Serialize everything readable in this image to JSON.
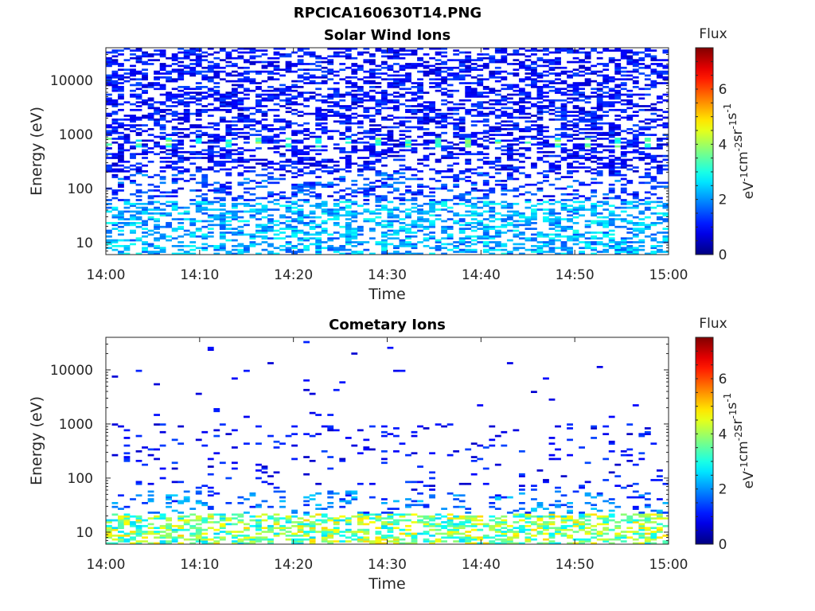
{
  "figure": {
    "title": "RPCICA160630T14.PNG"
  },
  "chart_data": [
    {
      "type": "heatmap",
      "title": "Solar Wind Ions",
      "xlabel": "Time",
      "ylabel": "Energy (eV)",
      "x_ticks": [
        "14:00",
        "14:10",
        "14:20",
        "14:30",
        "14:40",
        "14:50",
        "15:00"
      ],
      "x_range": [
        "14:00",
        "15:00"
      ],
      "y_scale": "log",
      "y_ticks": [
        "10",
        "100",
        "1000",
        "10000"
      ],
      "y_range": [
        6,
        40000
      ],
      "grid": false,
      "colorbar": {
        "label": "Flux",
        "units": "eV-1cm-2sr-1s-1",
        "range": [
          0,
          7.5
        ],
        "ticks": [
          "0",
          "2",
          "4",
          "6"
        ],
        "colormap": "jet"
      },
      "description_of_data": {
        "high_energy_band_eV": [
          200,
          40000
        ],
        "high_energy_flux": [
          0.5,
          1.5
        ],
        "peak_band_eV": [
          600,
          900
        ],
        "peak_flux": [
          2.5,
          4.0
        ],
        "low_energy_band_eV": [
          6,
          60
        ],
        "low_energy_flux": [
          1.5,
          3.0
        ]
      }
    },
    {
      "type": "heatmap",
      "title": "Cometary Ions",
      "xlabel": "Time",
      "ylabel": "Energy (eV)",
      "x_ticks": [
        "14:00",
        "14:10",
        "14:20",
        "14:30",
        "14:40",
        "14:50",
        "15:00"
      ],
      "x_range": [
        "14:00",
        "15:00"
      ],
      "y_scale": "log",
      "y_ticks": [
        "10",
        "100",
        "1000",
        "10000"
      ],
      "y_range": [
        6,
        40000
      ],
      "grid": false,
      "colorbar": {
        "label": "Flux",
        "units": "eV-1cm-2sr-1s-1",
        "range": [
          0,
          7.5
        ],
        "ticks": [
          "0",
          "2",
          "4",
          "6"
        ],
        "colormap": "jet"
      },
      "description_of_data": {
        "sparse_band_eV": [
          60,
          1000
        ],
        "sparse_flux": [
          0.5,
          1.5
        ],
        "peak_band_eV": [
          6,
          22
        ],
        "peak_flux": [
          2.5,
          5.0
        ]
      }
    }
  ]
}
